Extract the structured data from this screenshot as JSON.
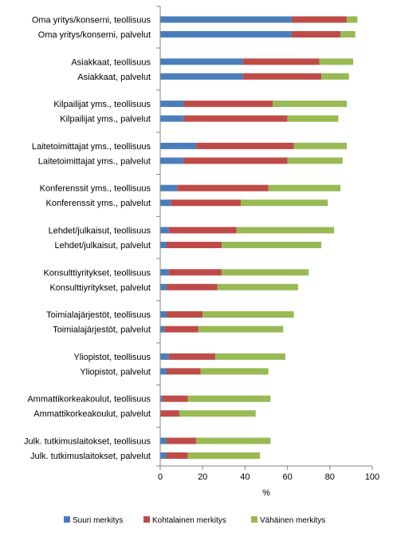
{
  "chart_data": {
    "type": "bar",
    "orientation": "horizontal",
    "stacked": true,
    "xlabel": "%",
    "ylabel": "",
    "title": "",
    "xlim": [
      0,
      100
    ],
    "x_ticks": [
      "0",
      "20",
      "40",
      "60",
      "80",
      "100"
    ],
    "grid": false,
    "legend_position": "bottom",
    "categories": [
      "Oma yritys/konserni, teollisuus",
      "Oma yritys/konserni, palvelut",
      "Asiakkaat, teollisuus",
      "Asiakkaat, palvelut",
      "Kilpailijat yms., teollisuus",
      "Kilpailijat yms., palvelut",
      "Laitetoimittajat  yms., teollisuus",
      "Laitetoimittajat  yms., palvelut",
      "Konferenssit yms., teollisuus",
      "Konferenssit yms., palvelut",
      "Lehdet/julkaisut, teollisuus",
      "Lehdet/julkaisut, palvelut",
      "Konsulttiyritykset, teollisuus",
      "Konsulttiyritykset, palvelut",
      "Toimialajärjestöt,  teollisuus",
      "Toimialajärjestöt,  palvelut",
      "Yliopistot, teollisuus",
      "Yliopistot, palvelut",
      "Ammattikorkeakoulut, teollisuus",
      "Ammattikorkeakoulut, palvelut",
      "Julk. tutkimuslaitokset,  teollisuus",
      "Julk. tutkimuslaitokset,  palvelut"
    ],
    "series": [
      {
        "name": "Suuri merkitys",
        "color": "#4a7ebb",
        "values": [
          62,
          62,
          39,
          39,
          11,
          11,
          17,
          11,
          8,
          5,
          4,
          3,
          4,
          3,
          3,
          2,
          4,
          3,
          1,
          0,
          3,
          3
        ]
      },
      {
        "name": "Kohtalainen merkitys",
        "color": "#be4b48",
        "values": [
          26,
          23,
          36,
          37,
          42,
          49,
          46,
          49,
          43,
          33,
          32,
          26,
          25,
          24,
          17,
          16,
          22,
          16,
          12,
          9,
          14,
          10
        ]
      },
      {
        "name": "Vähäinen merkitys",
        "color": "#98b954",
        "values": [
          5,
          7,
          16,
          13,
          35,
          24,
          25,
          26,
          34,
          41,
          46,
          47,
          41,
          38,
          43,
          40,
          33,
          32,
          39,
          36,
          35,
          34
        ]
      }
    ]
  }
}
